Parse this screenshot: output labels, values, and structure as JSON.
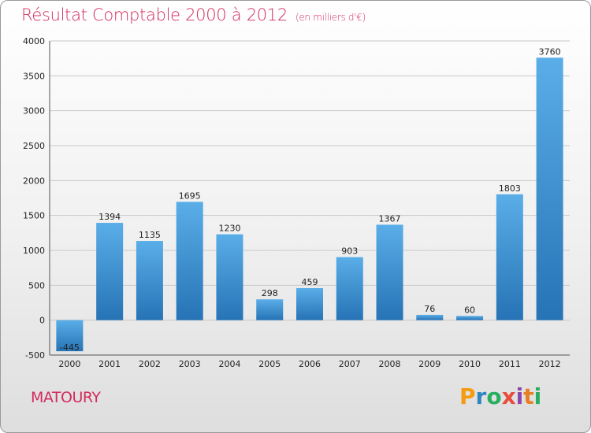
{
  "chart_data": {
    "type": "bar",
    "title": "Résultat Comptable 2000 à 2012",
    "subtitle": "(en milliers d'€)",
    "xlabel": "",
    "ylabel": "",
    "ylim": [
      -500,
      4000
    ],
    "yticks": [
      -500,
      0,
      500,
      1000,
      1500,
      2000,
      2500,
      3000,
      3500,
      4000
    ],
    "grid": true,
    "categories": [
      "2000",
      "2001",
      "2002",
      "2003",
      "2004",
      "2005",
      "2006",
      "2007",
      "2008",
      "2009",
      "2010",
      "2011",
      "2012"
    ],
    "values": [
      -445,
      1394,
      1135,
      1695,
      1230,
      298,
      459,
      903,
      1367,
      76,
      60,
      1803,
      3760
    ],
    "value_labels": [
      "-445",
      "1394",
      "1135",
      "1695",
      "1230",
      "298",
      "459",
      "903",
      "1367",
      "76",
      "60",
      "1803",
      "3760"
    ]
  },
  "commune": "MATOURY",
  "brand": {
    "letters": [
      "P",
      "r",
      "o",
      "x",
      "i",
      "t",
      "i"
    ],
    "colors": [
      "#f39c12",
      "#2e86c1",
      "#27ae60",
      "#e74c3c",
      "#8e44ad",
      "#e67e22",
      "#27ae60"
    ]
  },
  "colors": {
    "title": "#d22c5e",
    "bar_light": "#5aaee8",
    "bar_dark": "#2673b5"
  }
}
